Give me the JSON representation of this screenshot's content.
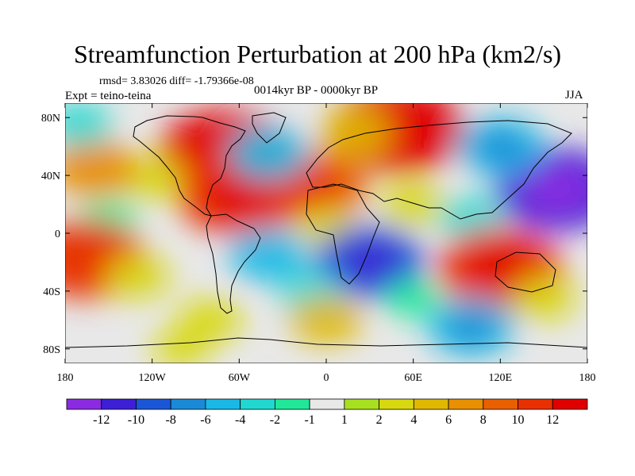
{
  "chart_data": {
    "type": "heatmap",
    "title": "Streamfunction Perturbation at 200 hPa (km2/s)",
    "stats": "rmsd= 3.83026 diff= -1.79366e-08",
    "experiment": "Expt = teino-teina",
    "period": "0014kyr BP - 0000kyr BP",
    "season": "JJA",
    "xlim": [
      -180,
      180
    ],
    "ylim": [
      -90,
      90
    ],
    "x_ticks": [
      {
        "value": -180,
        "label": "180"
      },
      {
        "value": -120,
        "label": "120W"
      },
      {
        "value": -60,
        "label": "60W"
      },
      {
        "value": 0,
        "label": "0"
      },
      {
        "value": 60,
        "label": "60E"
      },
      {
        "value": 120,
        "label": "120E"
      },
      {
        "value": 180,
        "label": "180"
      }
    ],
    "y_ticks": [
      {
        "value": 80,
        "label": "80N"
      },
      {
        "value": 40,
        "label": "40N"
      },
      {
        "value": 0,
        "label": "0"
      },
      {
        "value": -40,
        "label": "40S"
      },
      {
        "value": -80,
        "label": "80S"
      }
    ],
    "colorbar": {
      "colors": [
        "#8a2be2",
        "#3d1fd6",
        "#1a56d6",
        "#1a8ad6",
        "#1ab8e6",
        "#20d8d0",
        "#20e898",
        "#e8e8e8",
        "#a8e020",
        "#d8d810",
        "#e0b800",
        "#e89000",
        "#e86000",
        "#e83000",
        "#e00000"
      ],
      "labels": [
        "-12",
        "-10",
        "-8",
        "-6",
        "-4",
        "-2",
        "-1",
        "1",
        "2",
        "4",
        "6",
        "8",
        "10",
        "12"
      ]
    },
    "anomalies": [
      {
        "lon": -70,
        "lat": 55,
        "value": 12
      },
      {
        "lon": -55,
        "lat": 38,
        "value": 5
      },
      {
        "lon": -10,
        "lat": 32,
        "value": 9
      },
      {
        "lon": -60,
        "lat": 27,
        "value": 11
      },
      {
        "lon": -120,
        "lat": 38,
        "value": 3
      },
      {
        "lon": -160,
        "lat": 45,
        "value": 6
      },
      {
        "lon": -40,
        "lat": 55,
        "value": -5
      },
      {
        "lon": 0,
        "lat": 5,
        "value": 2
      },
      {
        "lon": 60,
        "lat": 20,
        "value": 3
      },
      {
        "lon": 50,
        "lat": 72,
        "value": 12
      },
      {
        "lon": 20,
        "lat": 70,
        "value": 4
      },
      {
        "lon": 160,
        "lat": 30,
        "value": -11
      },
      {
        "lon": 120,
        "lat": 60,
        "value": -6
      },
      {
        "lon": 100,
        "lat": 10,
        "value": -3
      },
      {
        "lon": -170,
        "lat": 75,
        "value": -3
      },
      {
        "lon": -150,
        "lat": 10,
        "value": -2
      },
      {
        "lon": -165,
        "lat": -18,
        "value": 10
      },
      {
        "lon": -130,
        "lat": -30,
        "value": 3
      },
      {
        "lon": -40,
        "lat": -15,
        "value": -5
      },
      {
        "lon": 30,
        "lat": -20,
        "value": -9
      },
      {
        "lon": -10,
        "lat": -42,
        "value": -3
      },
      {
        "lon": 120,
        "lat": -25,
        "value": 11
      },
      {
        "lon": 150,
        "lat": -45,
        "value": 3
      },
      {
        "lon": 0,
        "lat": -60,
        "value": 4
      },
      {
        "lon": -80,
        "lat": -60,
        "value": 3
      },
      {
        "lon": 100,
        "lat": -65,
        "value": -6
      },
      {
        "lon": -100,
        "lat": -80,
        "value": 2
      },
      {
        "lon": 60,
        "lat": -45,
        "value": -2
      }
    ]
  }
}
